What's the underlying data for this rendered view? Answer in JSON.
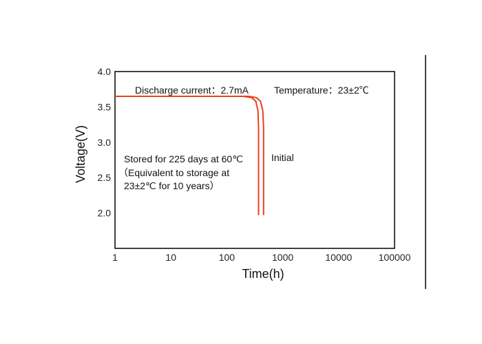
{
  "chart_data": {
    "type": "line",
    "xlabel": "Time(h)",
    "ylabel": "Voltage(V)",
    "x_scale": "log",
    "xlim": [
      1,
      100000
    ],
    "ylim": [
      1.5,
      4.0
    ],
    "x_ticks": [
      "1",
      "10",
      "100",
      "1000",
      "10000",
      "100000"
    ],
    "y_ticks": [
      "4.0",
      "3.5",
      "3.0",
      "2.5",
      "2.0"
    ],
    "grid": false,
    "annotations": {
      "discharge": "Discharge current：2.7mA",
      "temperature": "Temperature：23±2℃",
      "stored_line1": "Stored for 225 days at 60℃",
      "stored_line2": "（Equivalent to storage at",
      "stored_line3": "23±2℃ for 10 years）",
      "initial": "Initial"
    },
    "series": [
      {
        "color": "#e8401c",
        "points": [
          [
            1,
            3.65
          ],
          [
            100,
            3.65
          ],
          [
            200,
            3.65
          ],
          [
            280,
            3.63
          ],
          [
            330,
            3.58
          ],
          [
            360,
            3.45
          ],
          [
            370,
            3.2
          ],
          [
            370,
            2.5
          ],
          [
            370,
            1.97
          ]
        ]
      },
      {
        "color": "#e8401c",
        "points": [
          [
            1,
            3.65
          ],
          [
            100,
            3.65
          ],
          [
            250,
            3.65
          ],
          [
            340,
            3.63
          ],
          [
            400,
            3.58
          ],
          [
            440,
            3.45
          ],
          [
            455,
            3.2
          ],
          [
            455,
            2.5
          ],
          [
            455,
            1.97
          ]
        ]
      }
    ]
  }
}
